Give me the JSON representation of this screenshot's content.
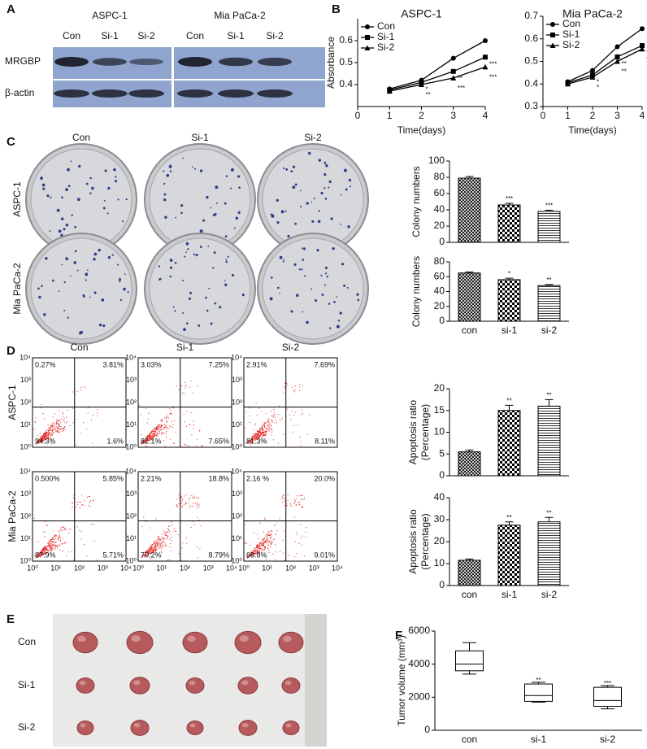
{
  "panel_labels": [
    "A",
    "B",
    "C",
    "D",
    "E",
    "F"
  ],
  "blot": {
    "cell_lines": [
      "ASPC-1",
      "Mia PaCa-2"
    ],
    "lanes": [
      "Con",
      "Si-1",
      "Si-2"
    ],
    "proteins": [
      "MRGBP",
      "β-actin"
    ]
  },
  "colony": {
    "columns": [
      "Con",
      "Si-1",
      "Si-2"
    ],
    "rows": [
      "ASPC-1",
      "Mia PaCa-2"
    ]
  },
  "flow": {
    "columns": [
      "Con",
      "Si-1",
      "Si-2"
    ],
    "rows": [
      "ASPC-1",
      "Mia PaCa-2"
    ],
    "axis_ticks": [
      "10⁰",
      "10¹",
      "10²",
      "10³",
      "10⁴"
    ],
    "quadrants": [
      [
        [
          "0.27%",
          "3.81%",
          "94.3%",
          "1.6%"
        ],
        [
          "3.03%",
          "7.25%",
          "82.1%",
          "7.65%"
        ],
        [
          "2.91%",
          "7.69%",
          "81.3%",
          "8.11%"
        ]
      ],
      [
        [
          "0.500%",
          "5.85%",
          "87.9%",
          "5.71%"
        ],
        [
          "2.21%",
          "18.8%",
          "70.2%",
          "8.79%"
        ],
        [
          "2.16 %",
          "20.0%",
          "68.8%",
          "9.01%"
        ]
      ]
    ]
  },
  "tumor": {
    "rows": [
      "Con",
      "Si-1",
      "Si-2"
    ]
  },
  "chart_data": [
    {
      "type": "line",
      "title": "ASPC-1",
      "xlabel": "Time(days)",
      "ylabel": "Absorbance",
      "x": [
        1,
        2,
        3,
        4
      ],
      "xlim": [
        0,
        4
      ],
      "xticks": [
        0,
        1,
        2,
        3,
        4
      ],
      "ylim": [
        0.3,
        0.7
      ],
      "yticks": [
        0.4,
        0.5,
        0.6
      ],
      "legend": "upper left",
      "series": [
        {
          "name": "Con",
          "color": "#000000",
          "marker": "circle",
          "values": [
            0.38,
            0.42,
            0.52,
            0.6
          ]
        },
        {
          "name": "Si-1",
          "color": "#000000",
          "marker": "square",
          "values": [
            0.375,
            0.41,
            0.46,
            0.525
          ],
          "significance": [
            null,
            "*",
            "**",
            "***"
          ]
        },
        {
          "name": "Si-2",
          "color": "#000000",
          "marker": "triangle",
          "values": [
            0.37,
            0.4,
            0.43,
            0.48
          ],
          "significance": [
            null,
            "**",
            "***",
            "***"
          ]
        }
      ]
    },
    {
      "type": "line",
      "title": "Mia PaCa-2",
      "xlabel": "Time(days)",
      "x": [
        1,
        2,
        3,
        4
      ],
      "xlim": [
        0,
        4
      ],
      "xticks": [
        0,
        1,
        2,
        3,
        4
      ],
      "ylim": [
        0.3,
        0.7
      ],
      "yticks": [
        0.3,
        0.4,
        0.5,
        0.6,
        0.7
      ],
      "legend": "upper left",
      "series": [
        {
          "name": "Con",
          "color": "#000000",
          "marker": "circle",
          "values": [
            0.41,
            0.46,
            0.565,
            0.645
          ]
        },
        {
          "name": "Si-1",
          "color": "#000000",
          "marker": "square",
          "values": [
            0.405,
            0.44,
            0.52,
            0.57
          ],
          "significance": [
            null,
            "*",
            "**",
            "**"
          ]
        },
        {
          "name": "Si-2",
          "color": "#000000",
          "marker": "triangle",
          "values": [
            0.4,
            0.43,
            0.5,
            0.555
          ],
          "significance": [
            null,
            "*",
            "**",
            "**"
          ]
        }
      ]
    },
    {
      "type": "bar",
      "ylabel": "Colony numbers",
      "ylim": [
        0,
        100
      ],
      "yticks": [
        0,
        20,
        40,
        60,
        80,
        100
      ],
      "values": [
        79,
        46,
        38
      ],
      "errors": [
        2,
        2,
        1.5
      ],
      "significance": [
        null,
        "***",
        "***"
      ]
    },
    {
      "type": "bar",
      "ylabel": "Colony numbers",
      "categories": [
        "con",
        "si-1",
        "si-2"
      ],
      "ylim": [
        0,
        80
      ],
      "yticks": [
        0,
        20,
        40,
        60,
        80
      ],
      "values": [
        65,
        56,
        48
      ],
      "errors": [
        1.5,
        2,
        1.5
      ],
      "significance": [
        null,
        "*",
        "**"
      ]
    },
    {
      "type": "bar",
      "ylabel": [
        "Apoptosis ratio",
        "(Percentage)"
      ],
      "ylim": [
        0,
        20
      ],
      "yticks": [
        0,
        5,
        10,
        15,
        20
      ],
      "values": [
        5.5,
        15,
        16
      ],
      "errors": [
        0.4,
        1.2,
        1.5
      ],
      "significance": [
        null,
        "**",
        "**"
      ]
    },
    {
      "type": "bar",
      "ylabel": [
        "Apoptosis ratio",
        "(Percentage)"
      ],
      "categories": [
        "con",
        "si-1",
        "si-2"
      ],
      "ylim": [
        0,
        40
      ],
      "yticks": [
        0,
        10,
        20,
        30,
        40
      ],
      "values": [
        11.5,
        27.5,
        29
      ],
      "errors": [
        0.6,
        1.5,
        2
      ],
      "significance": [
        null,
        "**",
        "**"
      ]
    },
    {
      "type": "box",
      "ylabel": "Tumor volume (mm³)",
      "categories": [
        "con",
        "si-1",
        "si-2"
      ],
      "ylim": [
        0,
        6000
      ],
      "yticks": [
        0,
        2000,
        4000,
        6000
      ],
      "stats": {
        "min": [
          3400,
          1700,
          1300
        ],
        "q1": [
          3600,
          1750,
          1450
        ],
        "median": [
          4000,
          2100,
          1800
        ],
        "q3": [
          4800,
          2800,
          2600
        ],
        "max": [
          5300,
          2900,
          2700
        ]
      },
      "significance": [
        null,
        "**",
        "***"
      ]
    }
  ]
}
